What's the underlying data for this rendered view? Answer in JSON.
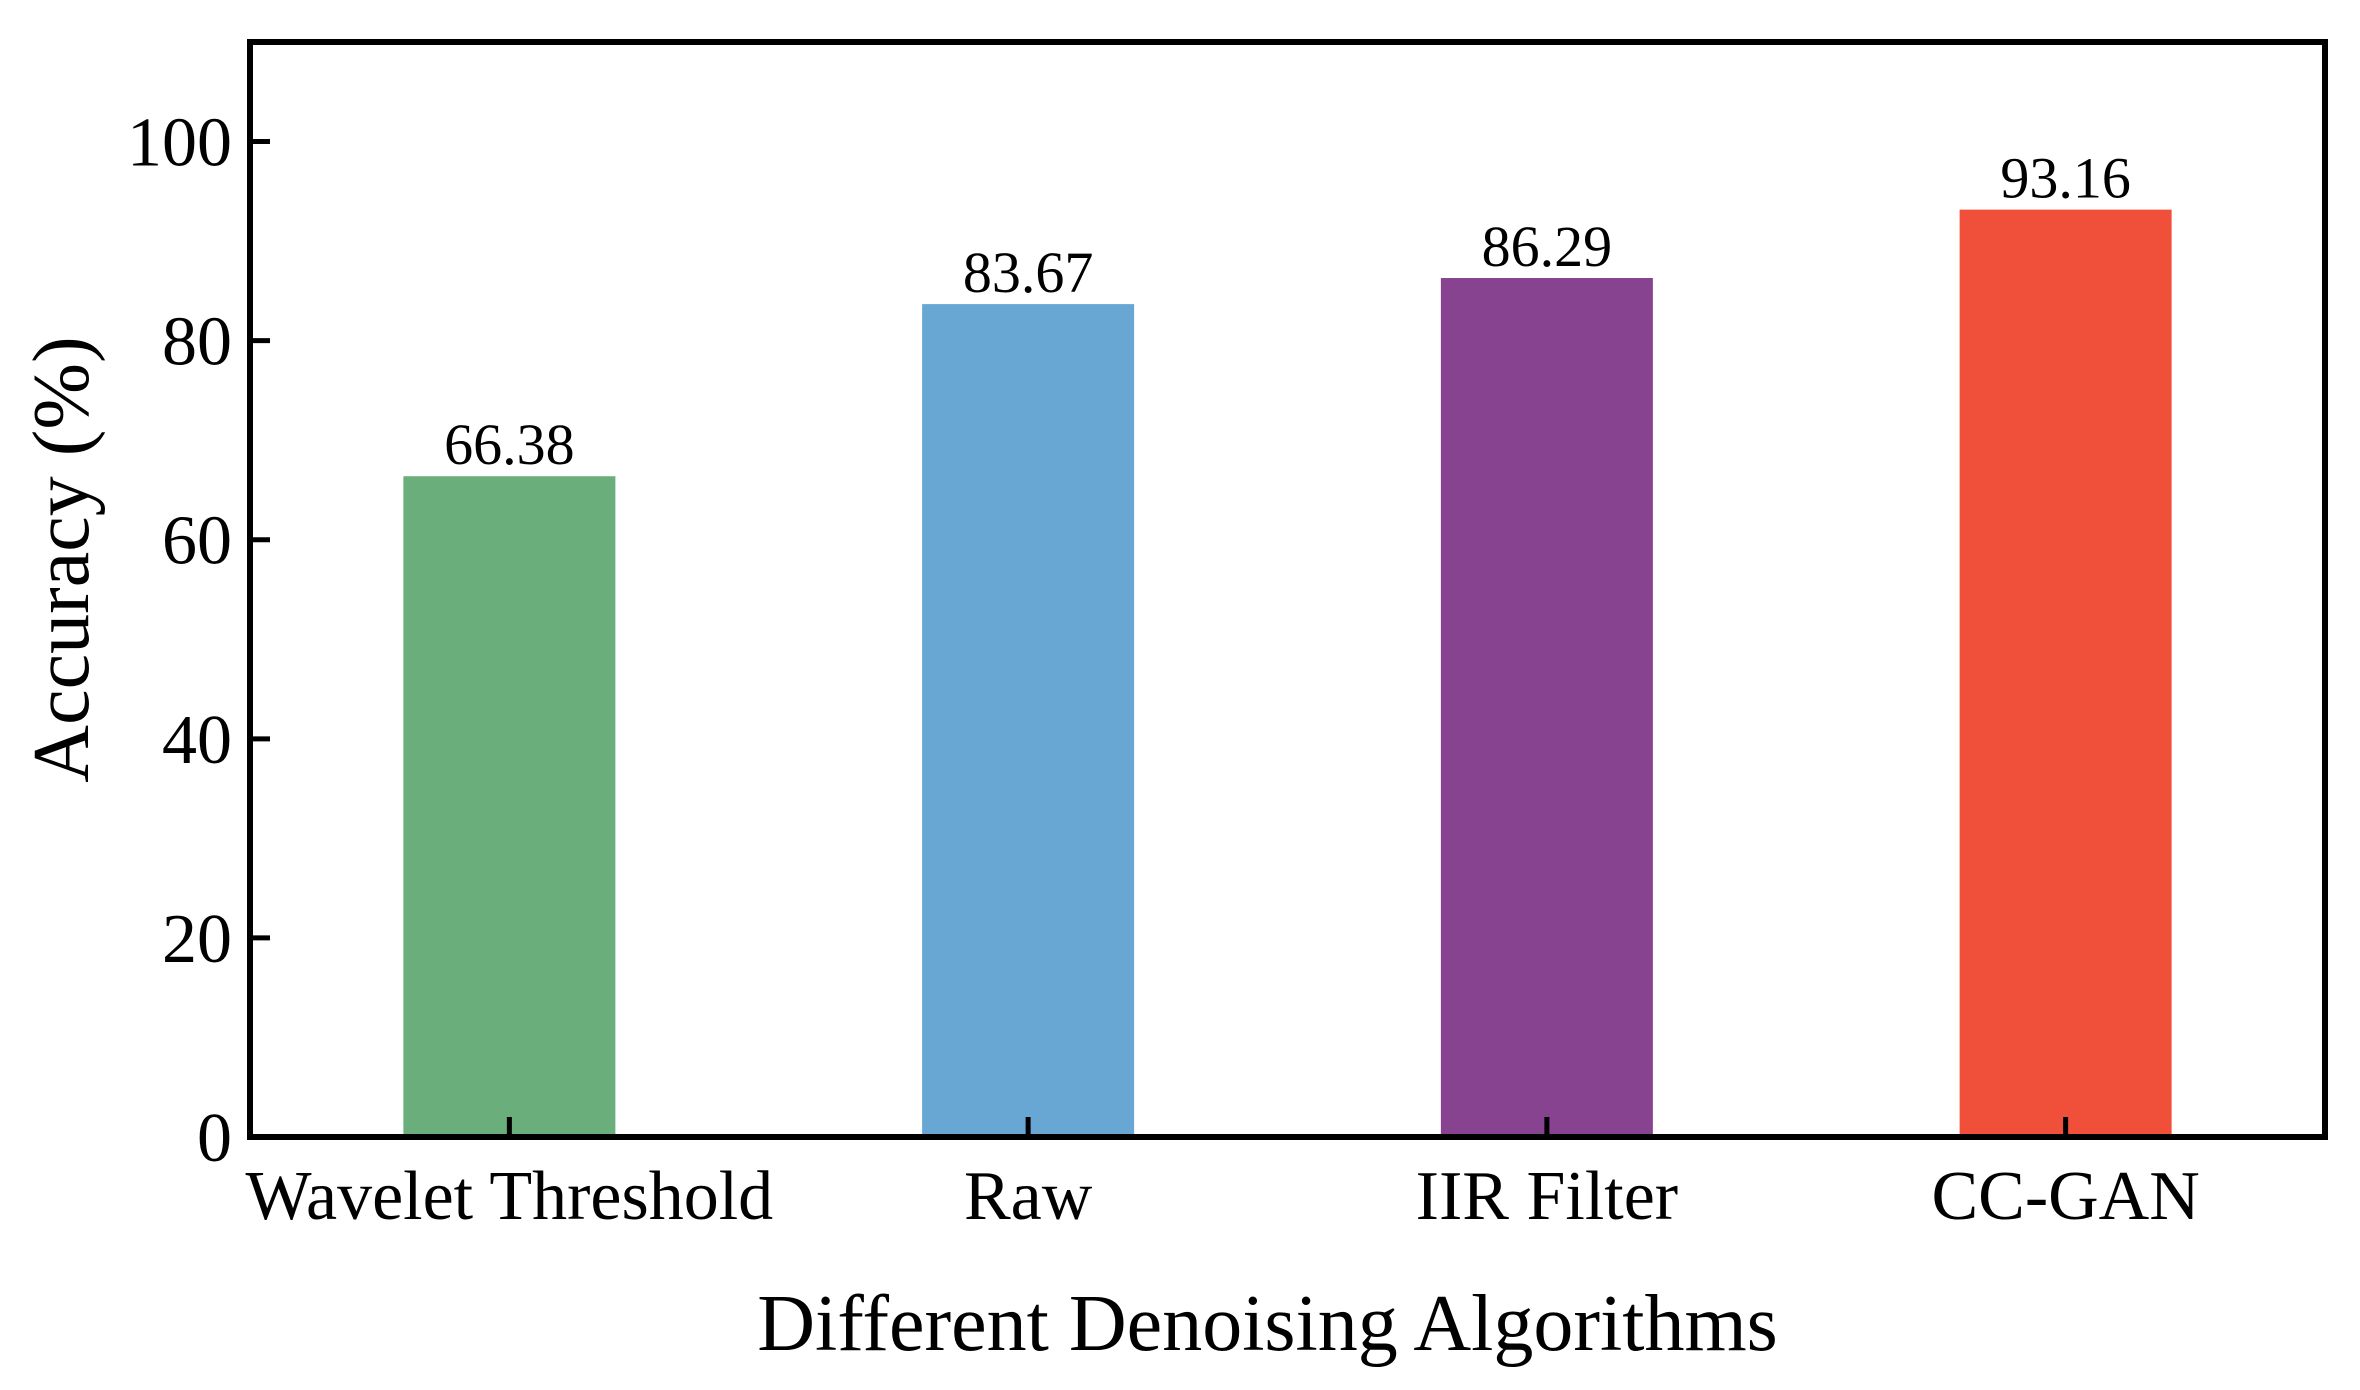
{
  "chart_data": {
    "type": "bar",
    "title": "",
    "xlabel": "Different Denoising Algorithms",
    "ylabel": "Accuracy (%)",
    "ylim": [
      0,
      110
    ],
    "yticks": [
      "0",
      "20",
      "40",
      "60",
      "80",
      "100"
    ],
    "categories": [
      "Wavelet Threshold",
      "Raw",
      "IIR Filter",
      "CC-GAN"
    ],
    "values": [
      66.38,
      83.67,
      86.29,
      93.16
    ],
    "value_labels": [
      "66.38",
      "83.67",
      "86.29",
      "93.16"
    ],
    "colors": [
      "#6aae7b",
      "#68a6d3",
      "#874290",
      "#f04f3a"
    ],
    "grid": false,
    "legend": "none"
  }
}
